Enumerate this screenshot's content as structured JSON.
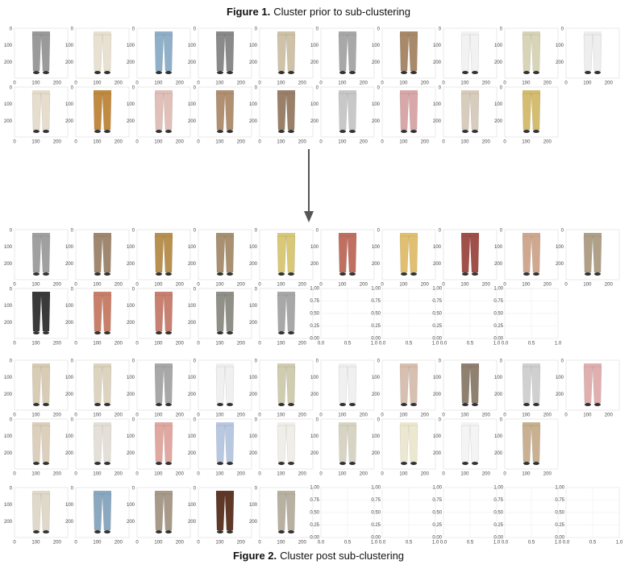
{
  "figure1": {
    "label": "Figure 1.",
    "caption": "Cluster prior to sub-clustering"
  },
  "figure2": {
    "label": "Figure 2.",
    "caption": "Cluster post sub-clustering"
  },
  "image_axis": {
    "xticks": [
      "0",
      "100",
      "200"
    ],
    "yticks": [
      "0",
      "100",
      "200"
    ]
  },
  "empty_axis": {
    "xticks": [
      "0.0",
      "0.5",
      "1.0"
    ],
    "yticks": [
      "0.00",
      "0.25",
      "0.50",
      "0.75",
      "1.00"
    ]
  }
}
